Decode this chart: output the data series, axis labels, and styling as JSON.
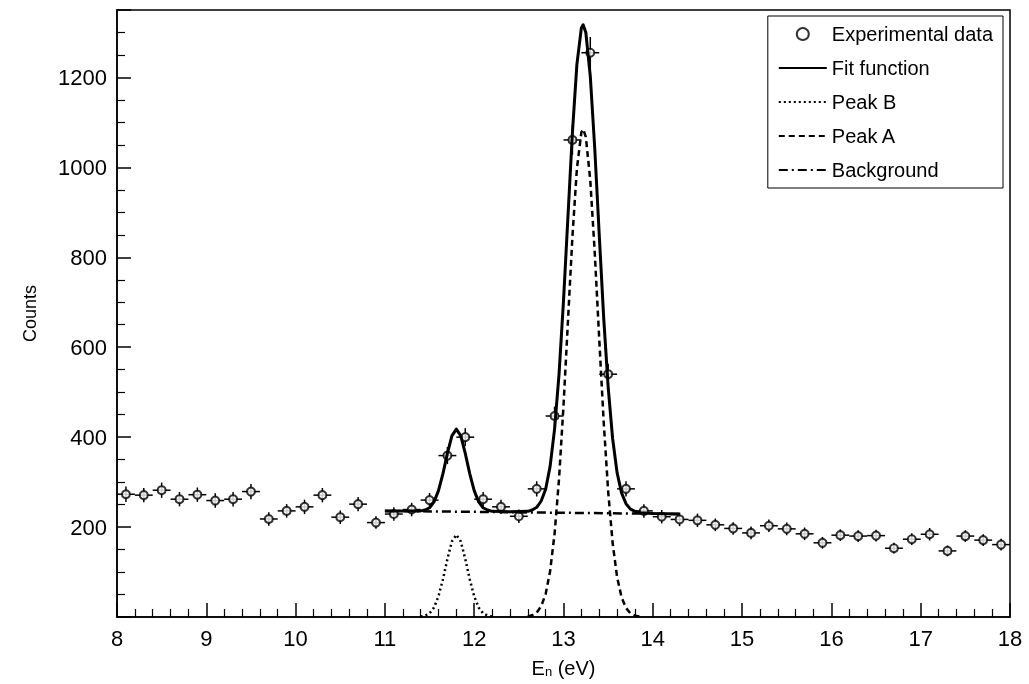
{
  "chart_data": {
    "type": "scatter",
    "xlabel": "E$_{n}$ (eV)",
    "ylabel": "Counts",
    "xlim": [
      8,
      18
    ],
    "xticks": [
      8,
      9,
      10,
      11,
      12,
      13,
      14,
      15,
      16,
      17,
      18
    ],
    "ylim": [
      0,
      1350
    ],
    "yticks": [
      200,
      400,
      600,
      800,
      1000,
      1200
    ],
    "grid": false,
    "legend": "top right",
    "series": [
      {
        "name": "Experimental data",
        "marker": "circle",
        "color": "#000000",
        "x": [
          8.1,
          8.3,
          8.5,
          8.7,
          8.9,
          9.1,
          9.3,
          9.5,
          9.7,
          9.9,
          10.1,
          10.3,
          10.5,
          10.7,
          10.9,
          11.1,
          11.3,
          11.5,
          11.7,
          11.9,
          12.1,
          12.3,
          12.5,
          12.7,
          12.9,
          13.1,
          13.3,
          13.5,
          13.7,
          13.9,
          14.1,
          14.3,
          14.5,
          14.7,
          14.9,
          15.1,
          15.3,
          15.5,
          15.7,
          15.9,
          16.1,
          16.3,
          16.5,
          16.7,
          16.9,
          17.1,
          17.3,
          17.5,
          17.7,
          17.9
        ],
        "values": [
          273,
          271,
          282,
          262,
          272,
          259,
          262,
          279,
          218,
          236,
          245,
          271,
          222,
          251,
          210,
          229,
          239,
          260,
          359,
          400,
          262,
          245,
          224,
          285,
          447,
          1061,
          1255,
          540,
          285,
          236,
          223,
          217,
          215,
          205,
          197,
          187,
          203,
          196,
          185,
          165,
          182,
          180,
          181,
          153,
          173,
          184,
          147,
          180,
          171,
          161
        ],
        "errors": [
          17,
          16,
          17,
          16,
          16,
          16,
          16,
          17,
          15,
          15,
          16,
          16,
          15,
          16,
          14,
          15,
          15,
          16,
          19,
          20,
          16,
          16,
          15,
          17,
          21,
          33,
          35,
          23,
          17,
          15,
          15,
          15,
          15,
          14,
          14,
          14,
          14,
          14,
          14,
          13,
          13,
          13,
          13,
          12,
          13,
          14,
          12,
          13,
          13,
          13
        ],
        "xerrors": [
          0.1,
          0.1,
          0.1,
          0.1,
          0.1,
          0.1,
          0.1,
          0.1,
          0.1,
          0.1,
          0.1,
          0.1,
          0.1,
          0.1,
          0.1,
          0.1,
          0.1,
          0.1,
          0.1,
          0.1,
          0.1,
          0.1,
          0.1,
          0.1,
          0.1,
          0.1,
          0.1,
          0.1,
          0.1,
          0.1,
          0.1,
          0.1,
          0.1,
          0.1,
          0.1,
          0.1,
          0.1,
          0.1,
          0.1,
          0.1,
          0.1,
          0.1,
          0.1,
          0.1,
          0.1,
          0.1,
          0.1,
          0.1,
          0.1,
          0.1
        ]
      },
      {
        "name": "Fit function",
        "type": "line",
        "line_style": "solid",
        "marker": "none",
        "color": "#000000",
        "x": [
          11.0,
          11.2,
          11.4,
          11.45,
          11.5,
          11.55,
          11.6,
          11.65,
          11.7,
          11.75,
          11.8,
          11.85,
          11.9,
          11.95,
          12.0,
          12.05,
          12.1,
          12.15,
          12.2,
          12.4,
          12.6,
          12.65,
          12.7,
          12.75,
          12.8,
          12.85,
          12.9,
          12.95,
          13.0,
          13.05,
          13.1,
          13.15,
          13.2,
          13.22,
          13.25,
          13.3,
          13.35,
          13.4,
          13.45,
          13.5,
          13.55,
          13.6,
          13.65,
          13.7,
          13.75,
          13.8,
          13.85,
          14.0,
          14.3
        ],
        "values": [
          236,
          236,
          236,
          238,
          243,
          256,
          281,
          319,
          364,
          403,
          418,
          403,
          364,
          319,
          281,
          256,
          243,
          238,
          235,
          234,
          235,
          238,
          244,
          258,
          284,
          335,
          418,
          540,
          703,
          891,
          1078,
          1229,
          1310,
          1317,
          1300,
          1203,
          1042,
          851,
          666,
          512,
          397,
          321,
          276,
          252,
          240,
          235,
          232,
          230,
          229
        ]
      },
      {
        "name": "Peak B",
        "type": "line",
        "line_style": "dotted",
        "marker": "none",
        "color": "#000000",
        "x": [
          11.4,
          11.45,
          11.5,
          11.55,
          11.6,
          11.65,
          11.7,
          11.75,
          11.8,
          11.85,
          11.9,
          11.95,
          12.0,
          12.05,
          12.1,
          12.15,
          12.2
        ],
        "values": [
          1,
          3,
          8,
          21,
          46,
          84,
          129,
          168,
          183,
          168,
          129,
          84,
          46,
          21,
          8,
          3,
          1
        ]
      },
      {
        "name": "Peak A",
        "type": "line",
        "line_style": "dashed",
        "marker": "none",
        "color": "#000000",
        "x": [
          12.6,
          12.65,
          12.7,
          12.75,
          12.8,
          12.85,
          12.9,
          12.95,
          13.0,
          13.05,
          13.1,
          13.15,
          13.2,
          13.22,
          13.25,
          13.3,
          13.35,
          13.4,
          13.45,
          13.5,
          13.55,
          13.6,
          13.65,
          13.7,
          13.75,
          13.8,
          13.85
        ],
        "values": [
          1,
          4,
          10,
          24,
          51,
          102,
          185,
          307,
          470,
          658,
          846,
          997,
          1078,
          1085,
          1068,
          971,
          810,
          619,
          434,
          280,
          165,
          89,
          44,
          20,
          8,
          3,
          1
        ]
      },
      {
        "name": "Background",
        "type": "line",
        "line_style": "dashdot",
        "marker": "none",
        "color": "#000000",
        "x": [
          11.0,
          14.3
        ],
        "values": [
          236,
          229
        ]
      }
    ]
  }
}
